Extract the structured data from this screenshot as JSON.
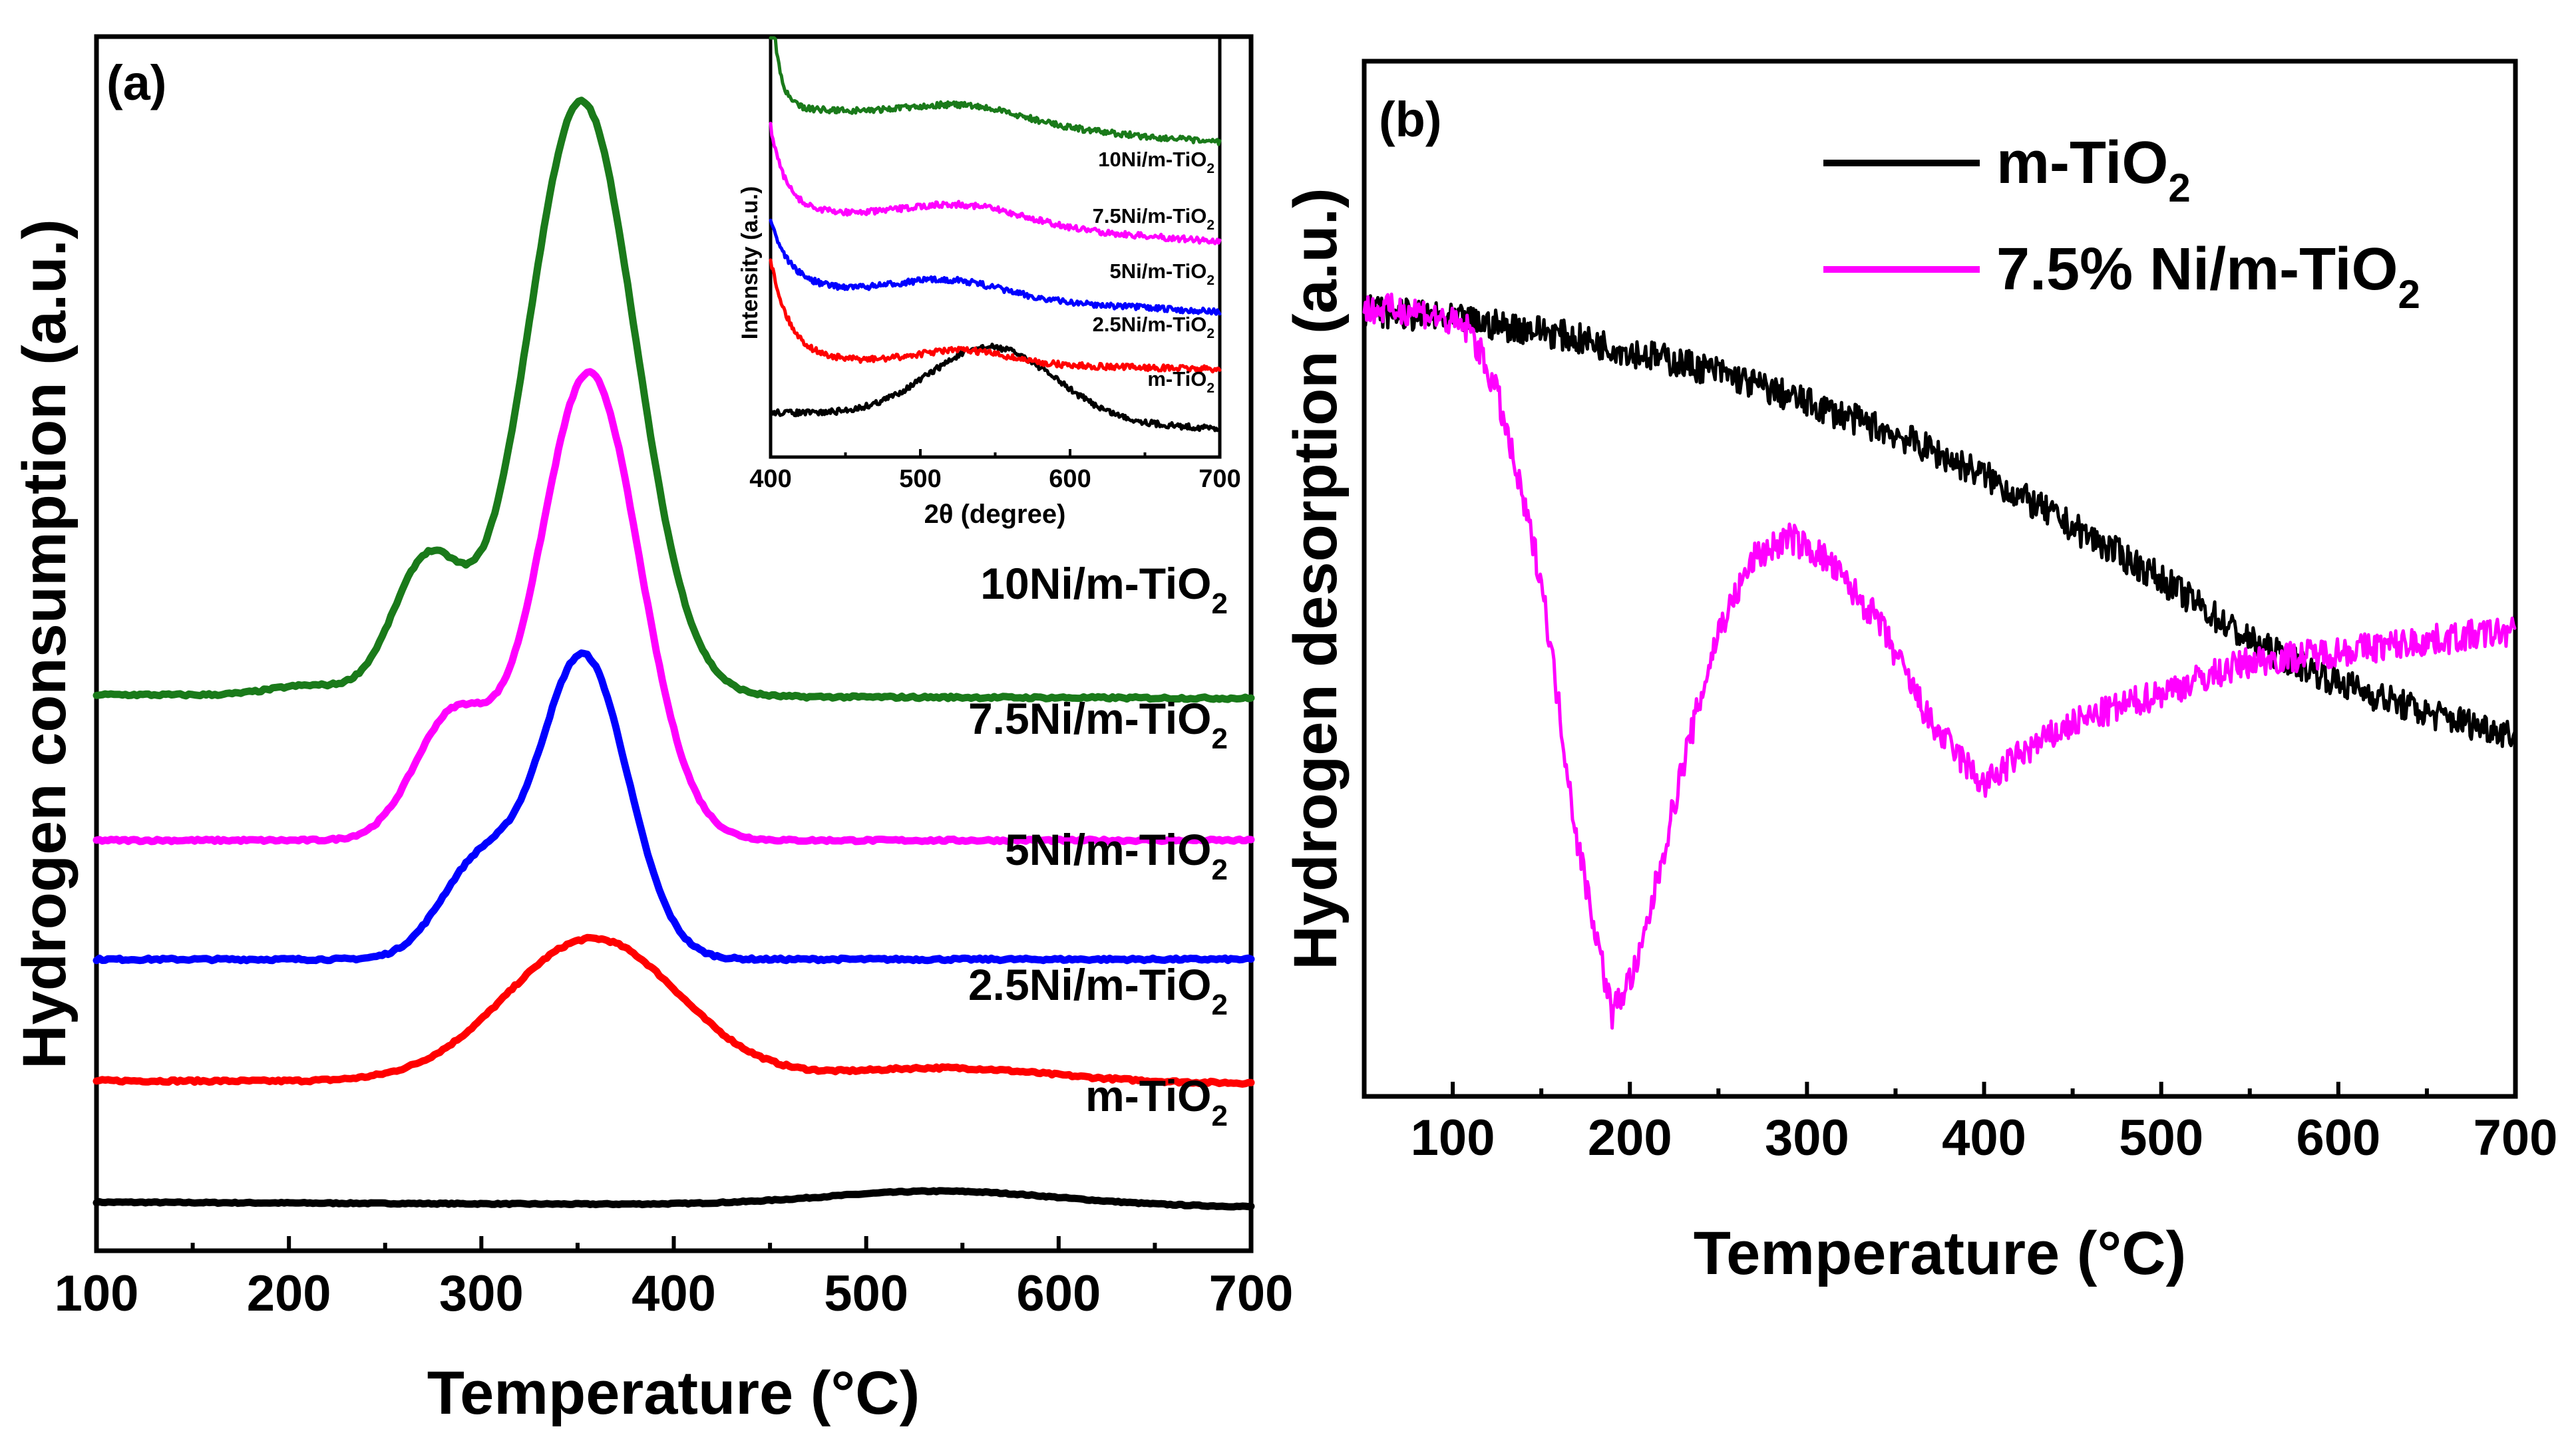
{
  "chart_data": [
    {
      "type": "line",
      "panel_label": "(a)",
      "xlabel": "Temperature (°C)",
      "ylabel": "Hydrogen consumption (a.u.)",
      "xlim": [
        100,
        700
      ],
      "xticks": [
        "100",
        "200",
        "300",
        "400",
        "500",
        "600",
        "700"
      ],
      "ylim": [
        0,
        1
      ],
      "y_ticks_shown": false,
      "series": [
        {
          "name": "m-TiO2",
          "label": "m-TiO",
          "sub": "2",
          "color": "#000000",
          "baseline": 0.04,
          "noise": 0.001,
          "peaks": [
            {
              "c": 540,
              "h": 0.012,
              "w": 60
            }
          ],
          "x": [
            100,
            700
          ],
          "tail": -0.004
        },
        {
          "name": "2.5Ni/m-TiO2",
          "label": "2.5Ni/m-TiO",
          "sub": "2",
          "color": "#ff0000",
          "baseline": 0.14,
          "noise": 0.002,
          "peaks": [
            {
              "c": 358,
              "h": 0.118,
              "w": 45
            },
            {
              "c": 540,
              "h": 0.012,
              "w": 55
            }
          ],
          "x": [
            100,
            700
          ],
          "tail": -0.002
        },
        {
          "name": "5Ni/m-TiO2",
          "label": "5Ni/m-TiO",
          "sub": "2",
          "color": "#0000ff",
          "baseline": 0.24,
          "noise": 0.002,
          "peaks": [
            {
              "c": 353,
              "h": 0.25,
              "w": 23
            },
            {
              "c": 298,
              "h": 0.075,
              "w": 20
            }
          ],
          "x": [
            100,
            700
          ],
          "tail": 0.0
        },
        {
          "name": "7.5Ni/m-TiO2",
          "label": "7.5Ni/m-TiO",
          "sub": "2",
          "color": "#ff00ff",
          "baseline": 0.338,
          "noise": 0.002,
          "peaks": [
            {
              "c": 356,
              "h": 0.385,
              "w": 26
            },
            {
              "c": 285,
              "h": 0.1,
              "w": 20
            }
          ],
          "x": [
            100,
            700
          ],
          "tail": 0.0
        },
        {
          "name": "10Ni/m-TiO2",
          "label": "10Ni/m-TiO",
          "sub": "2",
          "color": "#1a7a1a",
          "baseline": 0.458,
          "noise": 0.002,
          "peaks": [
            {
              "c": 352,
              "h": 0.49,
              "w": 28
            },
            {
              "c": 272,
              "h": 0.11,
              "w": 18
            },
            {
              "c": 210,
              "h": 0.008,
              "w": 20
            }
          ],
          "x": [
            100,
            700
          ],
          "tail": -0.003
        }
      ],
      "inset": {
        "xlabel": "2θ (degree)",
        "ylabel": "Intensity (a.u.)",
        "xlim": [
          400,
          700
        ],
        "xticks": [
          "400",
          "500",
          "600",
          "700"
        ],
        "labels": [
          "10Ni/m-TiO",
          "7.5Ni/m-TiO",
          "5Ni/m-TiO",
          "2.5Ni/m-TiO",
          "m-TiO"
        ],
        "sub": "2"
      }
    },
    {
      "type": "line",
      "panel_label": "(b)",
      "xlabel": "Temperature (°C)",
      "ylabel": "Hydrogen desorption (a.u.)",
      "xlim": [
        50,
        700
      ],
      "xticks": [
        "100",
        "200",
        "300",
        "400",
        "500",
        "600",
        "700"
      ],
      "ylim": [
        0,
        1
      ],
      "y_ticks_shown": false,
      "series": [
        {
          "name": "m-TiO2",
          "label": "m-TiO",
          "sub": "2",
          "color": "#000000",
          "x": [
            50,
            100,
            150,
            200,
            250,
            300,
            350,
            400,
            450,
            500,
            550,
            600,
            650,
            700
          ],
          "y": [
            0.76,
            0.75,
            0.74,
            0.72,
            0.7,
            0.67,
            0.64,
            0.6,
            0.55,
            0.5,
            0.44,
            0.4,
            0.37,
            0.35
          ]
        },
        {
          "name": "7.5% Ni/m-TiO2",
          "label": "7.5% Ni/m-TiO",
          "sub": "2",
          "color": "#ff00ff",
          "x": [
            50,
            80,
            110,
            125,
            150,
            170,
            190,
            205,
            230,
            250,
            270,
            290,
            310,
            340,
            370,
            400,
            420,
            450,
            500,
            550,
            600,
            650,
            700
          ],
          "y": [
            0.76,
            0.76,
            0.74,
            0.68,
            0.5,
            0.25,
            0.08,
            0.13,
            0.32,
            0.45,
            0.52,
            0.54,
            0.52,
            0.46,
            0.36,
            0.3,
            0.33,
            0.36,
            0.39,
            0.42,
            0.43,
            0.44,
            0.45
          ]
        }
      ]
    }
  ]
}
